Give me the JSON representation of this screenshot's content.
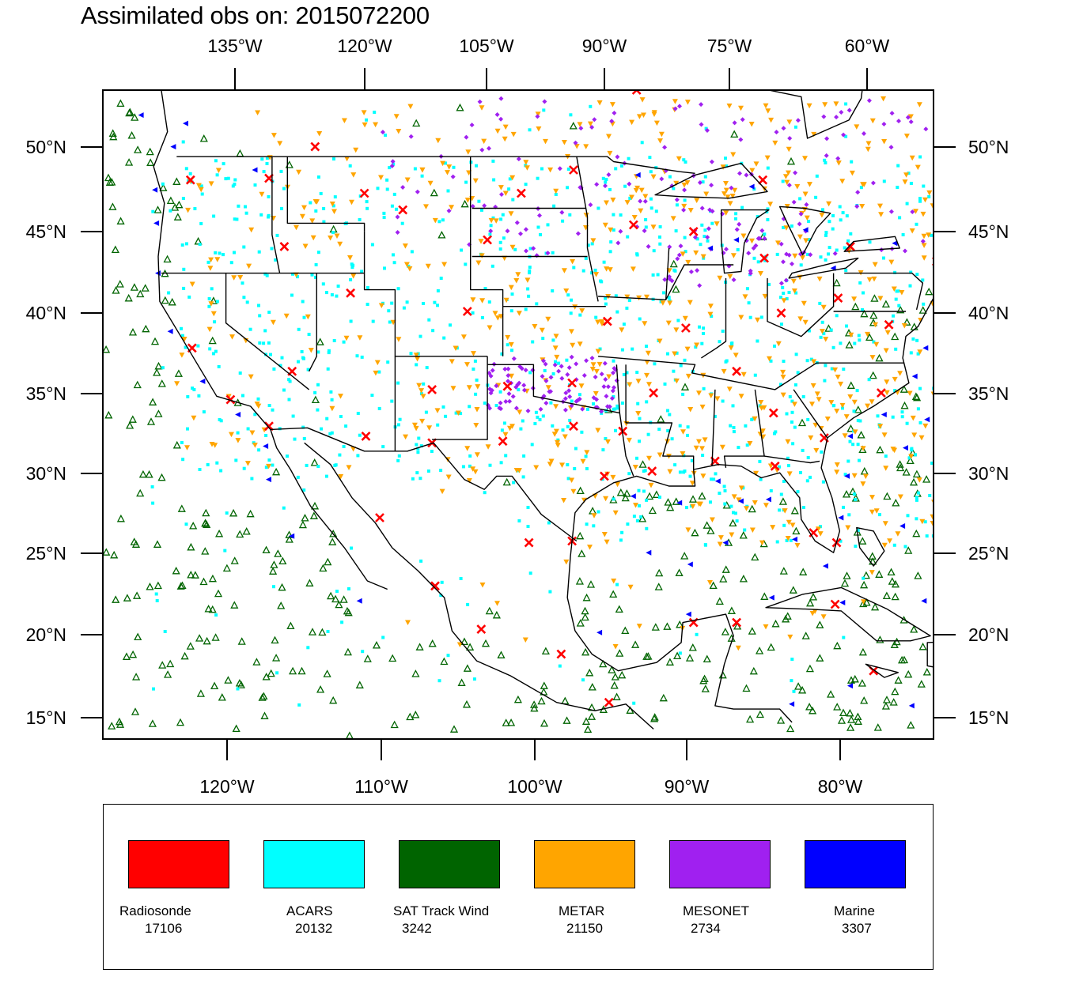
{
  "title": "Assimilated obs on: 2015072200",
  "map": {
    "top_lon_labels": [
      "135°W",
      "120°W",
      "105°W",
      "90°W",
      "75°W",
      "60°W"
    ],
    "bottom_lon_labels": [
      "120°W",
      "110°W",
      "100°W",
      "90°W",
      "80°W"
    ],
    "lat_labels": [
      "50°N",
      "45°N",
      "40°N",
      "35°N",
      "30°N",
      "25°N",
      "20°N",
      "15°N"
    ],
    "lon_range": [
      -128,
      -74
    ],
    "lat_range": [
      14,
      53
    ]
  },
  "legend": [
    {
      "name": "Radiosonde",
      "count": "17106",
      "color": "#ff0000"
    },
    {
      "name": "ACARS",
      "count": "20132",
      "color": "#00ffff"
    },
    {
      "name": "SAT Track Wind",
      "count": "3242",
      "color": "#006400"
    },
    {
      "name": "METAR",
      "count": "21150",
      "color": "#ffa500"
    },
    {
      "name": "MESONET",
      "count": "2734",
      "color": "#a020f0"
    },
    {
      "name": "Marine",
      "count": "3307",
      "color": "#0000ff"
    }
  ]
}
